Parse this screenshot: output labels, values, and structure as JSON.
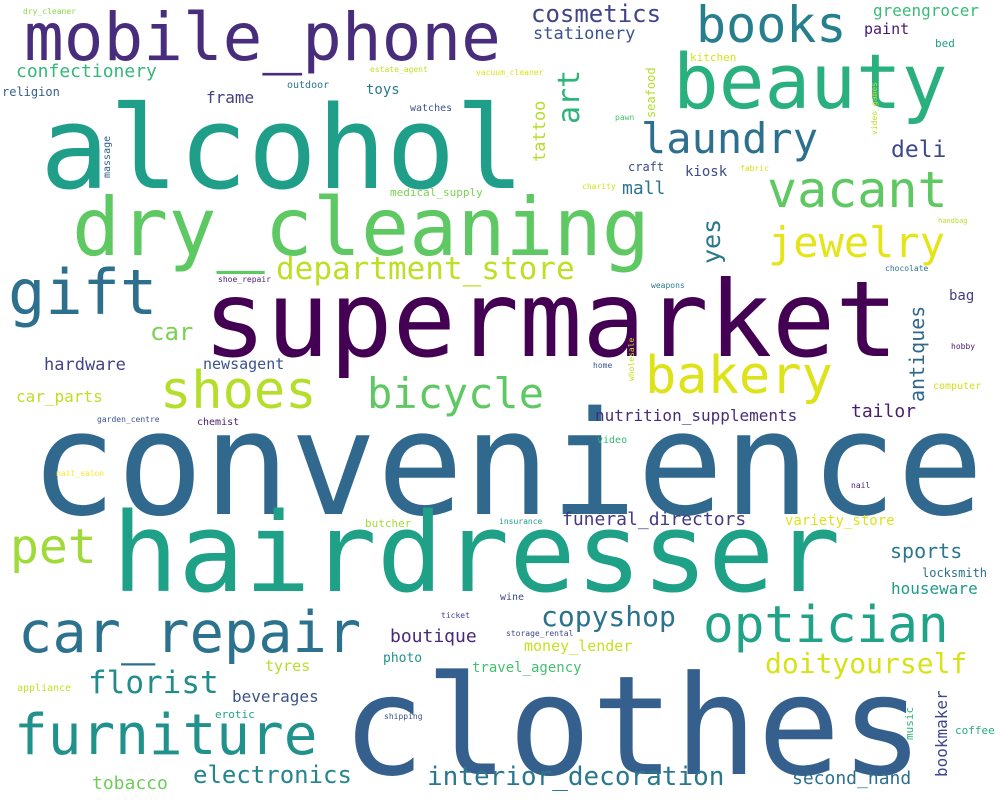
{
  "cloud": {
    "words": [
      {
        "text": "convenience",
        "color": "#31688e"
      },
      {
        "text": "clothes",
        "color": "#35608d"
      },
      {
        "text": "supermarket",
        "color": "#440154"
      },
      {
        "text": "hairdresser",
        "color": "#1fa187"
      },
      {
        "text": "alcohol",
        "color": "#1f9e89"
      },
      {
        "text": "dry_cleaning",
        "color": "#5ec962"
      },
      {
        "text": "mobile_phone",
        "color": "#472d7b"
      },
      {
        "text": "beauty",
        "color": "#2ab07f"
      },
      {
        "text": "car_repair",
        "color": "#2c728e"
      },
      {
        "text": "furniture",
        "color": "#21918c"
      },
      {
        "text": "optician",
        "color": "#20a386"
      },
      {
        "text": "books",
        "color": "#277f8e"
      },
      {
        "text": "bakery",
        "color": "#dde318"
      },
      {
        "text": "vacant",
        "color": "#5ec962"
      },
      {
        "text": "gift",
        "color": "#2d708e"
      },
      {
        "text": "shoes",
        "color": "#b5de2b"
      },
      {
        "text": "laundry",
        "color": "#2d708e"
      },
      {
        "text": "jewelry",
        "color": "#e5e419"
      },
      {
        "text": "bicycle",
        "color": "#5ec962"
      },
      {
        "text": "pet",
        "color": "#a0da39"
      },
      {
        "text": "department_store",
        "color": "#bddf26"
      },
      {
        "text": "copyshop",
        "color": "#2c728e"
      },
      {
        "text": "doityourself",
        "color": "#d8e219"
      },
      {
        "text": "florist",
        "color": "#228c8d"
      },
      {
        "text": "interior_decoration",
        "color": "#2a788e"
      },
      {
        "text": "electronics",
        "color": "#25858e"
      },
      {
        "text": "cosmetics",
        "color": "#414487"
      },
      {
        "text": "art",
        "color": "#2fb47c"
      },
      {
        "text": "funeral_directors",
        "color": "#443983"
      },
      {
        "text": "confectionery",
        "color": "#35b779"
      },
      {
        "text": "stationery",
        "color": "#3b528b"
      },
      {
        "text": "yes",
        "color": "#2a788e"
      },
      {
        "text": "sports",
        "color": "#2a788e"
      },
      {
        "text": "antiques",
        "color": "#31688e"
      },
      {
        "text": "deli",
        "color": "#3e4989"
      },
      {
        "text": "boutique",
        "color": "#482878"
      },
      {
        "text": "second_hand",
        "color": "#2d708e"
      },
      {
        "text": "nutrition_supplements",
        "color": "#472c7a"
      },
      {
        "text": "hardware",
        "color": "#414487"
      },
      {
        "text": "tailor",
        "color": "#481f70"
      },
      {
        "text": "car",
        "color": "#7ad151"
      },
      {
        "text": "houseware",
        "color": "#1f9a8a"
      },
      {
        "text": "mall",
        "color": "#2b748e"
      },
      {
        "text": "beverages",
        "color": "#3b528b"
      },
      {
        "text": "tobacco",
        "color": "#6ccd5a"
      },
      {
        "text": "tattoo",
        "color": "#b5de2b"
      },
      {
        "text": "greengrocer",
        "color": "#3aba76"
      },
      {
        "text": "money_lender",
        "color": "#c8e020"
      },
      {
        "text": "travel_agency",
        "color": "#44bf70"
      },
      {
        "text": "car_parts",
        "color": "#bddf26"
      },
      {
        "text": "variety_store",
        "color": "#dde318"
      },
      {
        "text": "newsagent",
        "color": "#3b528b"
      },
      {
        "text": "bookmaker",
        "color": "#3f4788"
      },
      {
        "text": "frame",
        "color": "#424086"
      },
      {
        "text": "paint",
        "color": "#481a6c"
      },
      {
        "text": "tyres",
        "color": "#b5de2b"
      },
      {
        "text": "photo",
        "color": "#21918c"
      },
      {
        "text": "bag",
        "color": "#433e85"
      },
      {
        "text": "kiosk",
        "color": "#3e4a89"
      },
      {
        "text": "toys",
        "color": "#2a788e"
      },
      {
        "text": "locksmith",
        "color": "#2d708e"
      },
      {
        "text": "craft",
        "color": "#3e4989"
      },
      {
        "text": "butcher",
        "color": "#a2da37"
      },
      {
        "text": "religion",
        "color": "#355f8d"
      },
      {
        "text": "seafood",
        "color": "#b5de2b"
      },
      {
        "text": "kitchen",
        "color": "#d5e21a"
      },
      {
        "text": "outdoor",
        "color": "#2a788e"
      },
      {
        "text": "watches",
        "color": "#3b528b"
      },
      {
        "text": "medical_supply",
        "color": "#7ad151"
      },
      {
        "text": "coffee",
        "color": "#25ab82"
      },
      {
        "text": "music",
        "color": "#2fb47c"
      },
      {
        "text": "bed",
        "color": "#1fa088"
      },
      {
        "text": "erotic",
        "color": "#20a486"
      },
      {
        "text": "chemist",
        "color": "#482071"
      },
      {
        "text": "massage",
        "color": "#355f8d"
      },
      {
        "text": "appliance",
        "color": "#c2df23"
      },
      {
        "text": "wine",
        "color": "#3e4989"
      },
      {
        "text": "computer",
        "color": "#d0e11c"
      },
      {
        "text": "video",
        "color": "#35b779"
      },
      {
        "text": "shipping",
        "color": "#3b528b"
      },
      {
        "text": "storage_rental",
        "color": "#404688"
      },
      {
        "text": "insurance",
        "color": "#1fa187"
      },
      {
        "text": "ticket",
        "color": "#404688"
      },
      {
        "text": "hobby",
        "color": "#481b6d"
      },
      {
        "text": "nail",
        "color": "#482475"
      },
      {
        "text": "chocolate",
        "color": "#2b748e"
      },
      {
        "text": "handbag",
        "color": "#b8de29"
      },
      {
        "text": "estate_agent",
        "color": "#c2df23"
      },
      {
        "text": "vacuum_cleaner",
        "color": "#dde318"
      },
      {
        "text": "dry_cleaner",
        "color": "#8bd646"
      },
      {
        "text": "pawn",
        "color": "#4ac16d"
      },
      {
        "text": "video_games",
        "color": "#c0df25"
      },
      {
        "text": "charity",
        "color": "#d2e21b"
      },
      {
        "text": "fabric",
        "color": "#d8e219"
      },
      {
        "text": "wholesale",
        "color": "#c8e020"
      },
      {
        "text": "weapons",
        "color": "#2a788e"
      },
      {
        "text": "home",
        "color": "#3b528b"
      },
      {
        "text": "shoe_repair",
        "color": "#482173"
      },
      {
        "text": "garden_centre",
        "color": "#3b528b"
      },
      {
        "text": "nail_salon",
        "color": "#fde725"
      }
    ]
  }
}
